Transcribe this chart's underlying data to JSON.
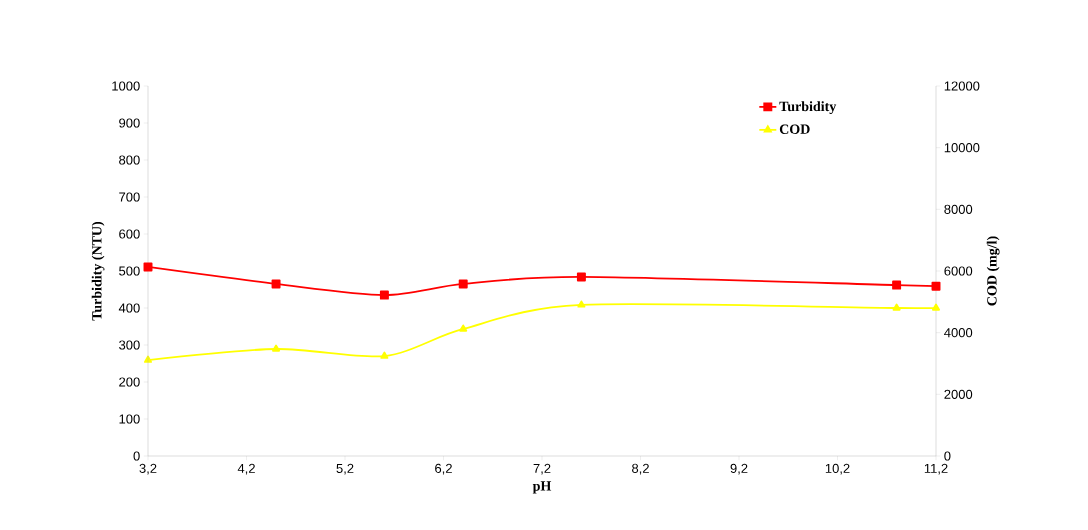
{
  "chart_data": {
    "type": "line",
    "xlabel": "pH",
    "ylabel": "Turbidity  (NTU)",
    "y2label": "COD (mg/l)",
    "x": [
      3.2,
      4.5,
      5.6,
      6.4,
      7.6,
      10.8,
      11.2
    ],
    "xlim": [
      3.2,
      11.2
    ],
    "xticks": [
      {
        "value": 3.2,
        "label": "3,2"
      },
      {
        "value": 4.2,
        "label": "4,2"
      },
      {
        "value": 5.2,
        "label": "5,2"
      },
      {
        "value": 6.2,
        "label": "6,2"
      },
      {
        "value": 7.2,
        "label": "7,2"
      },
      {
        "value": 8.2,
        "label": "8,2"
      },
      {
        "value": 9.2,
        "label": "9,2"
      },
      {
        "value": 10.2,
        "label": "10,2"
      },
      {
        "value": 11.2,
        "label": "11,2"
      }
    ],
    "ylim": [
      0,
      1000
    ],
    "yticks": [
      0,
      100,
      200,
      300,
      400,
      500,
      600,
      700,
      800,
      900,
      1000
    ],
    "y2lim": [
      0,
      12000
    ],
    "y2ticks": [
      0,
      2000,
      4000,
      6000,
      8000,
      10000,
      12000
    ],
    "legend": "top right",
    "grid": false,
    "series": [
      {
        "name": "Turbidity",
        "color": "#ff0000",
        "marker": "square",
        "values": [
          511,
          465,
          435,
          465,
          484,
          462,
          459
        ]
      },
      {
        "name": "COD",
        "color": "#ffff00",
        "marker": "triangle",
        "axis": "y2",
        "values": [
          3110,
          3470,
          3240,
          4120,
          4900,
          4800,
          4800
        ]
      }
    ]
  }
}
